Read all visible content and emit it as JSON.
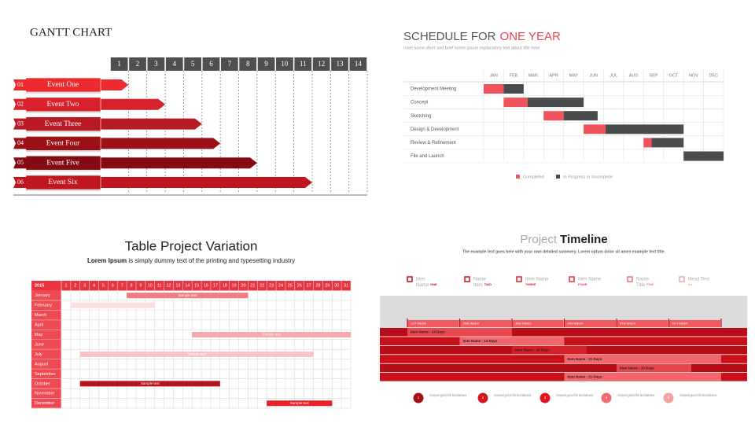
{
  "chart_data": [
    {
      "type": "gantt",
      "title": "GANTT CHART",
      "columns": [
        1,
        2,
        3,
        4,
        5,
        6,
        7,
        8,
        9,
        10,
        11,
        12,
        13,
        14
      ],
      "events": [
        {
          "number": "01",
          "label": "Event One",
          "end": 1,
          "color": "#ec2a2f"
        },
        {
          "number": "02",
          "label": "Event Two",
          "end": 3,
          "color": "#d7222b"
        },
        {
          "number": "03",
          "label": "Event Three",
          "end": 5,
          "color": "#b91b24"
        },
        {
          "number": "04",
          "label": "Event Four",
          "end": 6,
          "color": "#9c1017"
        },
        {
          "number": "05",
          "label": "Event Five",
          "end": 8,
          "color": "#850b12"
        },
        {
          "number": "06",
          "label": "Event Six",
          "end": 11,
          "color": "#c1161f"
        }
      ]
    },
    {
      "type": "gantt",
      "title": "SCHEDULE FOR",
      "title_highlight": "ONE YEAR",
      "subtitle": "Inset some short and brief lorem ipsum explanatory text about title here",
      "categories": [
        "JAN",
        "FEB",
        "MAR.",
        "APR",
        "MAY",
        "JUN",
        "JUL",
        "AUG",
        "SEP",
        "OCT",
        "NOV",
        "DEC"
      ],
      "tasks": [
        "Development Meeting",
        "Concept",
        "Sketching",
        "Design & Development",
        "Review & Refinement",
        "File and Launch"
      ],
      "series": [
        {
          "name": "Completed",
          "color": "#f0535b",
          "values": [
            [
              0,
              1
            ],
            [
              1,
              2.2
            ],
            [
              3,
              4
            ],
            [
              5,
              6.1
            ],
            [
              8,
              8.4
            ],
            null
          ]
        },
        {
          "name": "In Progress or Incomplete",
          "color": "#494b4d",
          "values": [
            [
              1,
              2
            ],
            [
              2.2,
              5
            ],
            [
              4,
              5.7
            ],
            [
              6.1,
              10
            ],
            [
              8.4,
              10
            ],
            [
              10,
              12
            ]
          ]
        }
      ]
    },
    {
      "type": "gantt",
      "title": "Table Project Variation",
      "subtitle_bold": "Lorem Ipsum",
      "subtitle": " is simply dummy text of the printing and typesetting industry",
      "year": 2015,
      "days": [
        1,
        2,
        3,
        4,
        5,
        6,
        7,
        8,
        9,
        10,
        11,
        12,
        13,
        14,
        15,
        16,
        17,
        18,
        19,
        20,
        21,
        22,
        23,
        24,
        25,
        26,
        27,
        28,
        29,
        30,
        31
      ],
      "rows": [
        {
          "month": "January",
          "start": 8,
          "end": 20,
          "label": "Sample text",
          "color": "#ee7c80"
        },
        {
          "month": "February",
          "start": 2,
          "end": 10,
          "color": "#fbdfe0"
        },
        {
          "month": "March"
        },
        {
          "month": "April"
        },
        {
          "month": "May",
          "start": 15,
          "end": 31,
          "label": "Sample text",
          "color": "#f5a9ad"
        },
        {
          "month": "June"
        },
        {
          "month": "July",
          "start": 3,
          "end": 27,
          "label": "Sample text",
          "color": "#f8c3c6"
        },
        {
          "month": "August"
        },
        {
          "month": "September"
        },
        {
          "month": "October",
          "start": 3,
          "end": 17,
          "label": "Sample text",
          "color": "#b5121b"
        },
        {
          "month": "November"
        },
        {
          "month": "December",
          "start": 23,
          "end": 29,
          "label": "Sample text",
          "color": "#e8202a"
        }
      ]
    },
    {
      "type": "gantt",
      "title": "Project",
      "title_bold": "Timeline",
      "subtitle": "The example text goes here with your own detailed summery. Lorem optum dolor sit amen example text title.",
      "legend": [
        {
          "line1": "Item",
          "line2": "Name",
          "tag": "ONE",
          "color": "#b5121b"
        },
        {
          "line1": "Name",
          "line2": "Item",
          "tag": "TWO",
          "color": "#c8141d"
        },
        {
          "line1": "Item Name",
          "tag": "THREE",
          "color": "#e0202a"
        },
        {
          "line1": "Item Name",
          "tag": "FOUR",
          "color": "#e8303a"
        },
        {
          "line1": "Name",
          "line2": "Title",
          "tag": "FIVE",
          "color": "#f07078"
        },
        {
          "line1": "Head Text",
          "tag": "six",
          "color": "#f5a0a5"
        }
      ],
      "weeks": [
        "1ST WEEK",
        "2ND WEEK",
        "3RD WEEK",
        "4TH WEEK",
        "5TH WEEK",
        "6TH WEEK"
      ],
      "xlim": [
        0,
        42
      ],
      "tasks": [
        {
          "label": "Item Name : 14 Days",
          "start": 0,
          "days": 14,
          "color": "#e8474f"
        },
        {
          "label": "Item Name : 14 Days",
          "start": 7,
          "days": 14,
          "color": "#f0666c"
        },
        {
          "label": "Item Name : 10 Days",
          "start": 14,
          "days": 10,
          "color": "#d42027"
        },
        {
          "label": "Item Name : 21 Days",
          "start": 21,
          "days": 21,
          "color": "#f0666c"
        },
        {
          "label": "Item Name : 10 Days",
          "start": 28,
          "days": 10,
          "color": "#e8474f"
        },
        {
          "label": "Item Name : 21 Days",
          "start": 21,
          "days": 21,
          "color": "#f0666c"
        }
      ],
      "notes": [
        {
          "number": 1,
          "text": "Creepeed god air fish land darkness.",
          "color": "#a50e14"
        },
        {
          "number": 2,
          "text": "Creepeed god air fish land darkness.",
          "color": "#d7141d"
        },
        {
          "number": 3,
          "text": "Creepeed god air fish land darkness.",
          "color": "#e8141d"
        },
        {
          "number": 4,
          "text": "Creepeed god air fish land darkness.",
          "color": "#f06a70"
        },
        {
          "number": 5,
          "text": "Creepeed god air fish land darkness.",
          "color": "#f5a0a5"
        }
      ]
    }
  ]
}
